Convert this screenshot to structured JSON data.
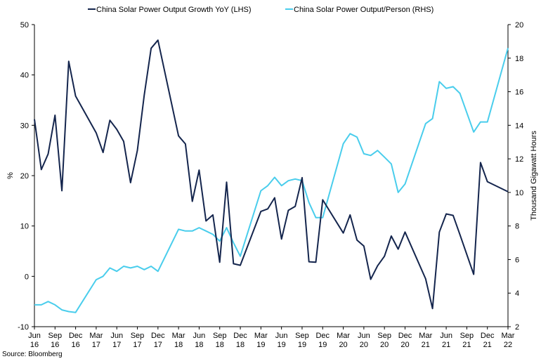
{
  "chart_data": {
    "type": "line",
    "source": "Source: Bloomberg",
    "ylabel_left": "%",
    "ylabel_right": "Thousand Gigawatt Hours",
    "ylim_left": [
      -10,
      50
    ],
    "ylim_right": [
      2,
      20
    ],
    "yticks_left": [
      -10,
      0,
      10,
      20,
      30,
      40,
      50
    ],
    "yticks_right": [
      2,
      4,
      6,
      8,
      10,
      12,
      14,
      16,
      18,
      20
    ],
    "x_ticks": [
      {
        "month": "Jun",
        "year": "16"
      },
      {
        "month": "Sep",
        "year": "16"
      },
      {
        "month": "Dec",
        "year": "16"
      },
      {
        "month": "Mar",
        "year": "17"
      },
      {
        "month": "Jun",
        "year": "17"
      },
      {
        "month": "Sep",
        "year": "17"
      },
      {
        "month": "Dec",
        "year": "17"
      },
      {
        "month": "Mar",
        "year": "18"
      },
      {
        "month": "Jun",
        "year": "18"
      },
      {
        "month": "Sep",
        "year": "18"
      },
      {
        "month": "Dec",
        "year": "18"
      },
      {
        "month": "Mar",
        "year": "19"
      },
      {
        "month": "Jun",
        "year": "19"
      },
      {
        "month": "Sep",
        "year": "19"
      },
      {
        "month": "Dec",
        "year": "19"
      },
      {
        "month": "Mar",
        "year": "20"
      },
      {
        "month": "Jun",
        "year": "20"
      },
      {
        "month": "Sep",
        "year": "20"
      },
      {
        "month": "Dec",
        "year": "20"
      },
      {
        "month": "Mar",
        "year": "21"
      },
      {
        "month": "Jun",
        "year": "21"
      },
      {
        "month": "Sep",
        "year": "21"
      },
      {
        "month": "Dec",
        "year": "21"
      },
      {
        "month": "Mar",
        "year": "22"
      }
    ],
    "x_start": "2016-06",
    "x_end": "2022-03",
    "grid": false,
    "legend_position": "top",
    "series": [
      {
        "name": "China Solar Power Output Growth YoY (LHS)",
        "axis": "left",
        "color": "#14254d",
        "points": [
          [
            "2016-06",
            31.2
          ],
          [
            "2016-07",
            21.2
          ],
          [
            "2016-08",
            24.3
          ],
          [
            "2016-09",
            32.0
          ],
          [
            "2016-10",
            17.0
          ],
          [
            "2016-11",
            42.7
          ],
          [
            "2016-12",
            35.8
          ],
          [
            "2017-03",
            28.5
          ],
          [
            "2017-04",
            24.6
          ],
          [
            "2017-05",
            31.0
          ],
          [
            "2017-06",
            29.2
          ],
          [
            "2017-07",
            26.8
          ],
          [
            "2017-08",
            18.6
          ],
          [
            "2017-09",
            25.0
          ],
          [
            "2017-10",
            36.0
          ],
          [
            "2017-11",
            45.3
          ],
          [
            "2017-12",
            46.9
          ],
          [
            "2018-03",
            27.9
          ],
          [
            "2018-04",
            26.3
          ],
          [
            "2018-05",
            14.9
          ],
          [
            "2018-06",
            21.1
          ],
          [
            "2018-07",
            11.0
          ],
          [
            "2018-08",
            12.2
          ],
          [
            "2018-09",
            2.8
          ],
          [
            "2018-10",
            18.7
          ],
          [
            "2018-11",
            2.5
          ],
          [
            "2018-12",
            2.2
          ],
          [
            "2019-03",
            12.9
          ],
          [
            "2019-04",
            13.4
          ],
          [
            "2019-05",
            15.6
          ],
          [
            "2019-06",
            7.4
          ],
          [
            "2019-07",
            13.1
          ],
          [
            "2019-08",
            13.9
          ],
          [
            "2019-09",
            19.6
          ],
          [
            "2019-10",
            2.9
          ],
          [
            "2019-11",
            2.8
          ],
          [
            "2019-12",
            15.2
          ],
          [
            "2020-03",
            8.6
          ],
          [
            "2020-04",
            12.2
          ],
          [
            "2020-05",
            7.2
          ],
          [
            "2020-06",
            6.0
          ],
          [
            "2020-07",
            -0.6
          ],
          [
            "2020-08",
            2.1
          ],
          [
            "2020-09",
            4.0
          ],
          [
            "2020-10",
            8.0
          ],
          [
            "2020-11",
            5.4
          ],
          [
            "2020-12",
            8.8
          ],
          [
            "2021-03",
            -0.5
          ],
          [
            "2021-04",
            -6.4
          ],
          [
            "2021-05",
            8.8
          ],
          [
            "2021-06",
            12.4
          ],
          [
            "2021-07",
            12.1
          ],
          [
            "2021-08",
            8.3
          ],
          [
            "2021-10",
            0.4
          ],
          [
            "2021-11",
            22.6
          ],
          [
            "2021-12",
            18.8
          ],
          [
            "2022-03",
            16.8
          ]
        ]
      },
      {
        "name": "China Solar Power Output/Person (RHS)",
        "axis": "right",
        "color": "#49cdec",
        "points": [
          [
            "2016-06",
            3.3
          ],
          [
            "2016-07",
            3.3
          ],
          [
            "2016-08",
            3.5
          ],
          [
            "2016-09",
            3.3
          ],
          [
            "2016-10",
            3.0
          ],
          [
            "2016-11",
            2.9
          ],
          [
            "2016-12",
            2.85
          ],
          [
            "2017-03",
            4.8
          ],
          [
            "2017-04",
            5.0
          ],
          [
            "2017-05",
            5.5
          ],
          [
            "2017-06",
            5.3
          ],
          [
            "2017-07",
            5.6
          ],
          [
            "2017-08",
            5.5
          ],
          [
            "2017-09",
            5.6
          ],
          [
            "2017-10",
            5.4
          ],
          [
            "2017-11",
            5.6
          ],
          [
            "2017-12",
            5.3
          ],
          [
            "2018-03",
            7.8
          ],
          [
            "2018-04",
            7.7
          ],
          [
            "2018-05",
            7.7
          ],
          [
            "2018-06",
            7.9
          ],
          [
            "2018-07",
            7.7
          ],
          [
            "2018-08",
            7.5
          ],
          [
            "2018-09",
            7.1
          ],
          [
            "2018-10",
            7.9
          ],
          [
            "2018-11",
            7.0
          ],
          [
            "2018-12",
            6.2
          ],
          [
            "2019-03",
            10.1
          ],
          [
            "2019-04",
            10.4
          ],
          [
            "2019-05",
            10.9
          ],
          [
            "2019-06",
            10.4
          ],
          [
            "2019-07",
            10.7
          ],
          [
            "2019-08",
            10.8
          ],
          [
            "2019-09",
            10.7
          ],
          [
            "2019-10",
            9.4
          ],
          [
            "2019-11",
            8.5
          ],
          [
            "2019-12",
            8.5
          ],
          [
            "2020-03",
            12.9
          ],
          [
            "2020-04",
            13.5
          ],
          [
            "2020-05",
            13.3
          ],
          [
            "2020-06",
            12.3
          ],
          [
            "2020-07",
            12.2
          ],
          [
            "2020-08",
            12.5
          ],
          [
            "2020-09",
            12.1
          ],
          [
            "2020-10",
            11.7
          ],
          [
            "2020-11",
            10.0
          ],
          [
            "2020-12",
            10.5
          ],
          [
            "2021-03",
            14.1
          ],
          [
            "2021-04",
            14.4
          ],
          [
            "2021-05",
            16.6
          ],
          [
            "2021-06",
            16.2
          ],
          [
            "2021-07",
            16.3
          ],
          [
            "2021-08",
            15.9
          ],
          [
            "2021-10",
            13.6
          ],
          [
            "2021-11",
            14.2
          ],
          [
            "2021-12",
            14.2
          ],
          [
            "2022-03",
            18.6
          ]
        ]
      }
    ]
  }
}
